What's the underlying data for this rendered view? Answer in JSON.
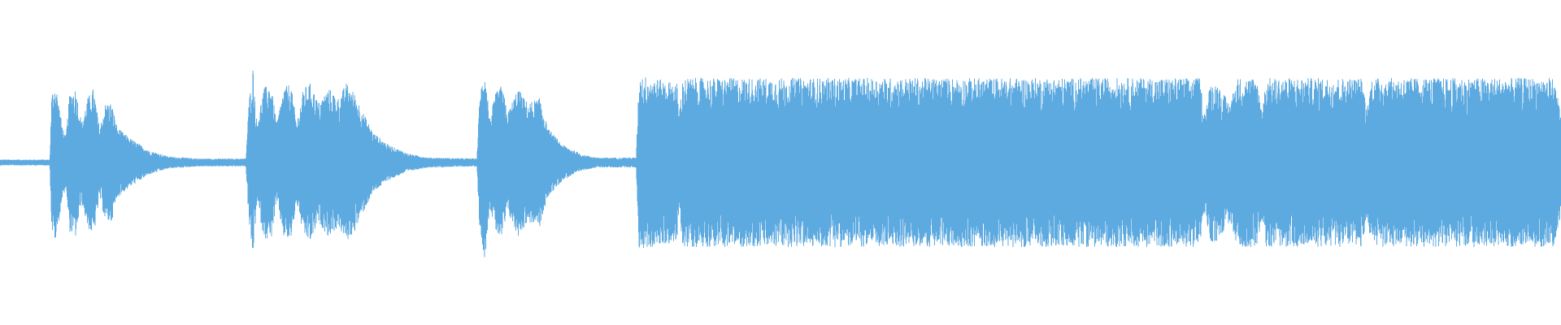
{
  "waveform": {
    "color": "#5DAAE0",
    "background": "#FFFFFF",
    "icon": "audio-waveform"
  }
}
